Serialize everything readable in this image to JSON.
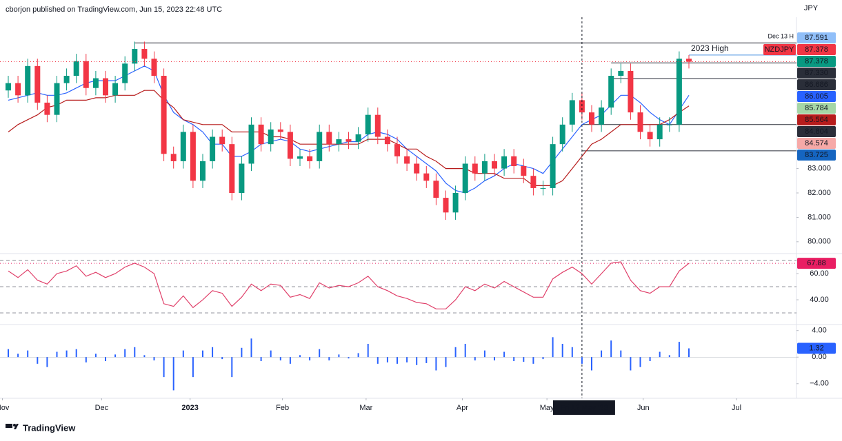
{
  "header": {
    "byline": "cborjon published on TradingView.com, Jun 15, 2023 22:48 UTC",
    "currency": "JPY"
  },
  "footer": {
    "brand": "TradingView"
  },
  "chart_data": [
    {
      "type": "candlestick",
      "symbol": "NZDJPY",
      "up_color": "#089981",
      "down_color": "#f23645",
      "open": [
        86.2,
        86.5,
        86.0,
        87.2,
        85.7,
        85.2,
        86.5,
        86.8,
        87.4,
        86.3,
        86.7,
        86.0,
        86.5,
        87.3,
        87.9,
        87.5,
        86.8,
        83.6,
        83.3,
        84.5,
        82.5,
        83.3,
        84.3,
        84.0,
        82.0,
        83.2,
        84.8,
        84.0,
        84.6,
        84.5,
        83.4,
        83.5,
        83.3,
        84.5,
        84.0,
        84.2,
        84.1,
        84.4,
        85.2,
        84.3,
        84.0,
        83.5,
        83.2,
        82.8,
        82.5,
        81.8,
        81.2,
        82.0,
        83.2,
        82.8,
        83.3,
        83.0,
        83.5,
        83.1,
        82.7,
        82.2,
        82.2,
        84.0,
        84.8,
        85.8,
        85.3,
        84.8,
        85.5,
        86.8,
        87.0,
        85.3,
        84.5,
        84.2,
        84.8,
        84.8,
        87.5
      ],
      "high": [
        86.8,
        86.8,
        87.5,
        87.5,
        86.0,
        86.8,
        87.1,
        87.7,
        87.7,
        87.0,
        87.0,
        86.8,
        87.6,
        88.2,
        88.2,
        87.8,
        87.1,
        83.9,
        84.8,
        84.8,
        83.6,
        84.6,
        84.6,
        84.3,
        83.5,
        85.1,
        85.1,
        84.9,
        84.9,
        84.8,
        83.8,
        83.8,
        84.8,
        84.8,
        84.5,
        84.5,
        84.7,
        85.5,
        85.5,
        84.6,
        84.3,
        83.8,
        83.5,
        83.1,
        82.8,
        82.1,
        82.3,
        83.5,
        83.5,
        83.6,
        83.6,
        83.8,
        83.8,
        83.4,
        83.0,
        82.5,
        84.3,
        85.1,
        86.1,
        86.1,
        85.6,
        85.8,
        87.1,
        87.3,
        87.3,
        85.6,
        84.8,
        85.1,
        85.1,
        87.8,
        87.65
      ],
      "low": [
        85.9,
        85.7,
        85.7,
        85.4,
        84.9,
        84.9,
        86.2,
        86.5,
        86.0,
        86.0,
        85.7,
        85.7,
        86.2,
        87.0,
        87.2,
        86.5,
        83.3,
        83.0,
        83.0,
        82.2,
        82.2,
        83.0,
        83.7,
        81.7,
        81.7,
        82.9,
        83.7,
        83.7,
        84.2,
        83.1,
        83.1,
        83.0,
        83.0,
        83.7,
        83.7,
        83.8,
        83.8,
        84.1,
        84.0,
        83.7,
        83.2,
        82.9,
        82.5,
        82.2,
        81.5,
        80.9,
        80.9,
        81.7,
        82.5,
        82.5,
        82.7,
        82.7,
        82.8,
        82.4,
        81.9,
        81.9,
        81.9,
        83.7,
        84.5,
        85.0,
        84.5,
        84.5,
        85.2,
        86.5,
        85.0,
        84.2,
        83.9,
        83.9,
        84.5,
        84.5,
        87.1
      ],
      "close": [
        86.5,
        86.0,
        87.2,
        85.7,
        85.2,
        86.5,
        86.8,
        87.4,
        86.3,
        86.7,
        86.0,
        86.5,
        87.3,
        87.9,
        87.5,
        86.8,
        83.6,
        83.3,
        84.5,
        82.5,
        83.3,
        84.3,
        84.0,
        82.0,
        83.2,
        84.8,
        84.0,
        84.6,
        84.5,
        83.4,
        83.5,
        83.3,
        84.5,
        84.0,
        84.2,
        84.1,
        84.4,
        85.2,
        84.3,
        84.0,
        83.5,
        83.2,
        82.8,
        82.5,
        81.8,
        81.2,
        82.0,
        83.2,
        82.8,
        83.3,
        83.0,
        83.5,
        83.1,
        82.7,
        82.2,
        82.2,
        84.0,
        84.8,
        85.8,
        85.3,
        84.8,
        85.5,
        86.8,
        87.0,
        85.3,
        84.5,
        84.2,
        84.8,
        84.8,
        87.5,
        87.378
      ],
      "series": [
        {
          "color": "#2962ff",
          "values": [
            85.8,
            85.9,
            86.0,
            86.1,
            86.0,
            86.0,
            86.1,
            86.3,
            86.5,
            86.6,
            86.6,
            86.6,
            86.8,
            87.0,
            87.2,
            87.0,
            86.0,
            85.3,
            85.0,
            84.8,
            84.5,
            84.0,
            84.0,
            83.5,
            83.5,
            83.7,
            84.0,
            84.1,
            84.2,
            84.1,
            83.8,
            83.7,
            83.8,
            83.9,
            84.0,
            84.1,
            84.1,
            84.4,
            84.5,
            84.4,
            84.2,
            83.8,
            83.5,
            83.2,
            82.9,
            82.4,
            82.1,
            82.0,
            82.2,
            82.5,
            82.7,
            83.0,
            83.2,
            83.1,
            83.0,
            82.8,
            83.3,
            83.8,
            84.3,
            84.8,
            85.0,
            85.2,
            85.6,
            86.0,
            86.0,
            85.7,
            85.3,
            85.0,
            84.8,
            85.4,
            86.0
          ]
        },
        {
          "color": "#b71c1c",
          "values": [
            84.5,
            84.8,
            85.0,
            85.2,
            85.5,
            85.6,
            85.8,
            85.8,
            85.8,
            85.9,
            85.9,
            86.0,
            86.0,
            86.0,
            86.2,
            86.2,
            85.8,
            85.5,
            85.0,
            84.9,
            84.8,
            84.8,
            84.8,
            84.5,
            84.5,
            84.5,
            84.5,
            84.3,
            84.3,
            84.2,
            84.0,
            84.0,
            84.0,
            84.0,
            84.0,
            84.0,
            84.0,
            84.2,
            84.2,
            84.2,
            84.0,
            83.8,
            83.8,
            83.5,
            83.3,
            83.0,
            83.0,
            83.0,
            82.8,
            82.8,
            82.8,
            82.6,
            82.6,
            82.6,
            82.3,
            82.3,
            82.3,
            82.5,
            83.0,
            83.5,
            84.0,
            84.2,
            84.5,
            84.8,
            84.8,
            84.8,
            84.8,
            84.8,
            85.0,
            85.3,
            85.564
          ]
        }
      ],
      "ylim": [
        79.6,
        89.2
      ],
      "yticks": [
        {
          "value": 83,
          "label": "83.000"
        },
        {
          "value": 82,
          "label": "82.000"
        },
        {
          "value": 81,
          "label": "81.000"
        },
        {
          "value": 80,
          "label": "80.000"
        }
      ],
      "price_tags": [
        {
          "value": 87.591,
          "label": "87.591",
          "color": "#90bff9"
        },
        {
          "value": 87.378,
          "label": "87.378",
          "color": "#f23645"
        },
        {
          "value": 87.378,
          "label": "87.378",
          "color": "#089981"
        },
        {
          "value": 87.33,
          "label": "87.330",
          "color": "#2a2e39"
        },
        {
          "value": 86.686,
          "label": "86.686",
          "color": "#2a2e39"
        },
        {
          "value": 86.005,
          "label": "86.005",
          "color": "#2962ff"
        },
        {
          "value": 85.784,
          "label": "85.784",
          "color": "#a5d6a7",
          "text_color": "#131722"
        },
        {
          "value": 85.564,
          "label": "85.564",
          "color": "#b71c1c"
        },
        {
          "value": 84.804,
          "label": "84.804",
          "color": "#2a2e39"
        },
        {
          "value": 84.574,
          "label": "84.574",
          "color": "#f7a9a7",
          "text_color": "#131722"
        },
        {
          "value": 83.725,
          "label": "83.725",
          "color": "#1565c0"
        }
      ],
      "levels": [
        {
          "value": 88.15,
          "from": 13,
          "label": "Dec 13 H",
          "color": "#2a2e39"
        },
        {
          "value": 87.65,
          "from": 70,
          "label": "2023 High",
          "color": "#4a90e2"
        },
        {
          "value": 87.33,
          "from": 62,
          "color": "#2a2e39"
        },
        {
          "value": 86.686,
          "from": 62,
          "color": "#2a2e39"
        },
        {
          "value": 84.804,
          "from": 59,
          "color": "#2a2e39"
        },
        {
          "value": 83.725,
          "from": 59,
          "color": "#2a2e39"
        }
      ],
      "xticks": [
        {
          "value": -0.6,
          "label": "Nov"
        },
        {
          "value": 9.6,
          "label": "Dec"
        },
        {
          "value": 18.7,
          "label": "2023",
          "strong": true
        },
        {
          "value": 28.2,
          "label": "Feb"
        },
        {
          "value": 36.8,
          "label": "Mar"
        },
        {
          "value": 46.7,
          "label": "Apr"
        },
        {
          "value": 55.4,
          "label": "May"
        },
        {
          "value": 65.3,
          "label": "Jun"
        },
        {
          "value": 74.9,
          "label": "Jul"
        }
      ],
      "crosshair": {
        "x": 59,
        "label": "Fri 12 May '23"
      }
    },
    {
      "type": "line",
      "color": "#e0406a",
      "values": [
        62,
        57,
        63,
        55,
        52,
        60,
        62,
        66,
        58,
        61,
        57,
        60,
        65,
        68,
        65,
        60,
        37,
        35,
        43,
        34,
        40,
        47,
        45,
        35,
        42,
        52,
        47,
        52,
        51,
        42,
        44,
        41,
        53,
        49,
        51,
        50,
        53,
        58,
        50,
        47,
        43,
        41,
        38,
        37,
        33,
        33,
        40,
        50,
        47,
        52,
        49,
        54,
        50,
        46,
        42,
        42,
        56,
        61,
        65,
        60,
        52,
        60,
        68,
        69,
        55,
        47,
        45,
        50,
        50,
        62,
        67.88
      ],
      "ylim": [
        21.6,
        73.2
      ],
      "yticks": [
        {
          "value": 60,
          "label": "60.00"
        },
        {
          "value": 40,
          "label": "40.00"
        }
      ],
      "levels": [
        70,
        50,
        30
      ],
      "tag": {
        "value": 67.88,
        "label": "67.88",
        "color": "#e91e63"
      }
    },
    {
      "type": "histogram",
      "color": "#2962ff",
      "values": [
        1.2,
        0.5,
        1.0,
        -1.0,
        -1.5,
        0.8,
        1.0,
        1.2,
        -0.8,
        0.5,
        -0.6,
        0.4,
        1.2,
        1.5,
        0.3,
        -0.5,
        -3.0,
        -5.0,
        1.0,
        -3.0,
        1.0,
        1.5,
        -0.3,
        -3.0,
        1.4,
        2.8,
        -0.6,
        1.0,
        -0.5,
        -1.0,
        0.3,
        -0.5,
        1.2,
        -0.5,
        0.4,
        -0.2,
        0.6,
        2.0,
        -1.0,
        -0.8,
        -1.0,
        -0.8,
        -1.2,
        -0.9,
        -2.0,
        -1.5,
        1.5,
        2.0,
        -0.5,
        1.0,
        -0.5,
        0.8,
        -0.6,
        -0.7,
        -1.0,
        -0.3,
        3.0,
        2.0,
        1.5,
        -1.0,
        -2.0,
        1.0,
        2.5,
        1.0,
        -2.0,
        -1.5,
        -0.6,
        0.8,
        0.3,
        2.3,
        1.32
      ],
      "ylim": [
        -6.2,
        4.8
      ],
      "yticks": [
        {
          "value": 4,
          "label": "4.00"
        },
        {
          "value": 0,
          "label": "0.00"
        },
        {
          "value": -4,
          "label": "−4.00"
        }
      ],
      "tag": {
        "value": 1.32,
        "label": "1.32",
        "color": "#2962ff"
      }
    }
  ]
}
